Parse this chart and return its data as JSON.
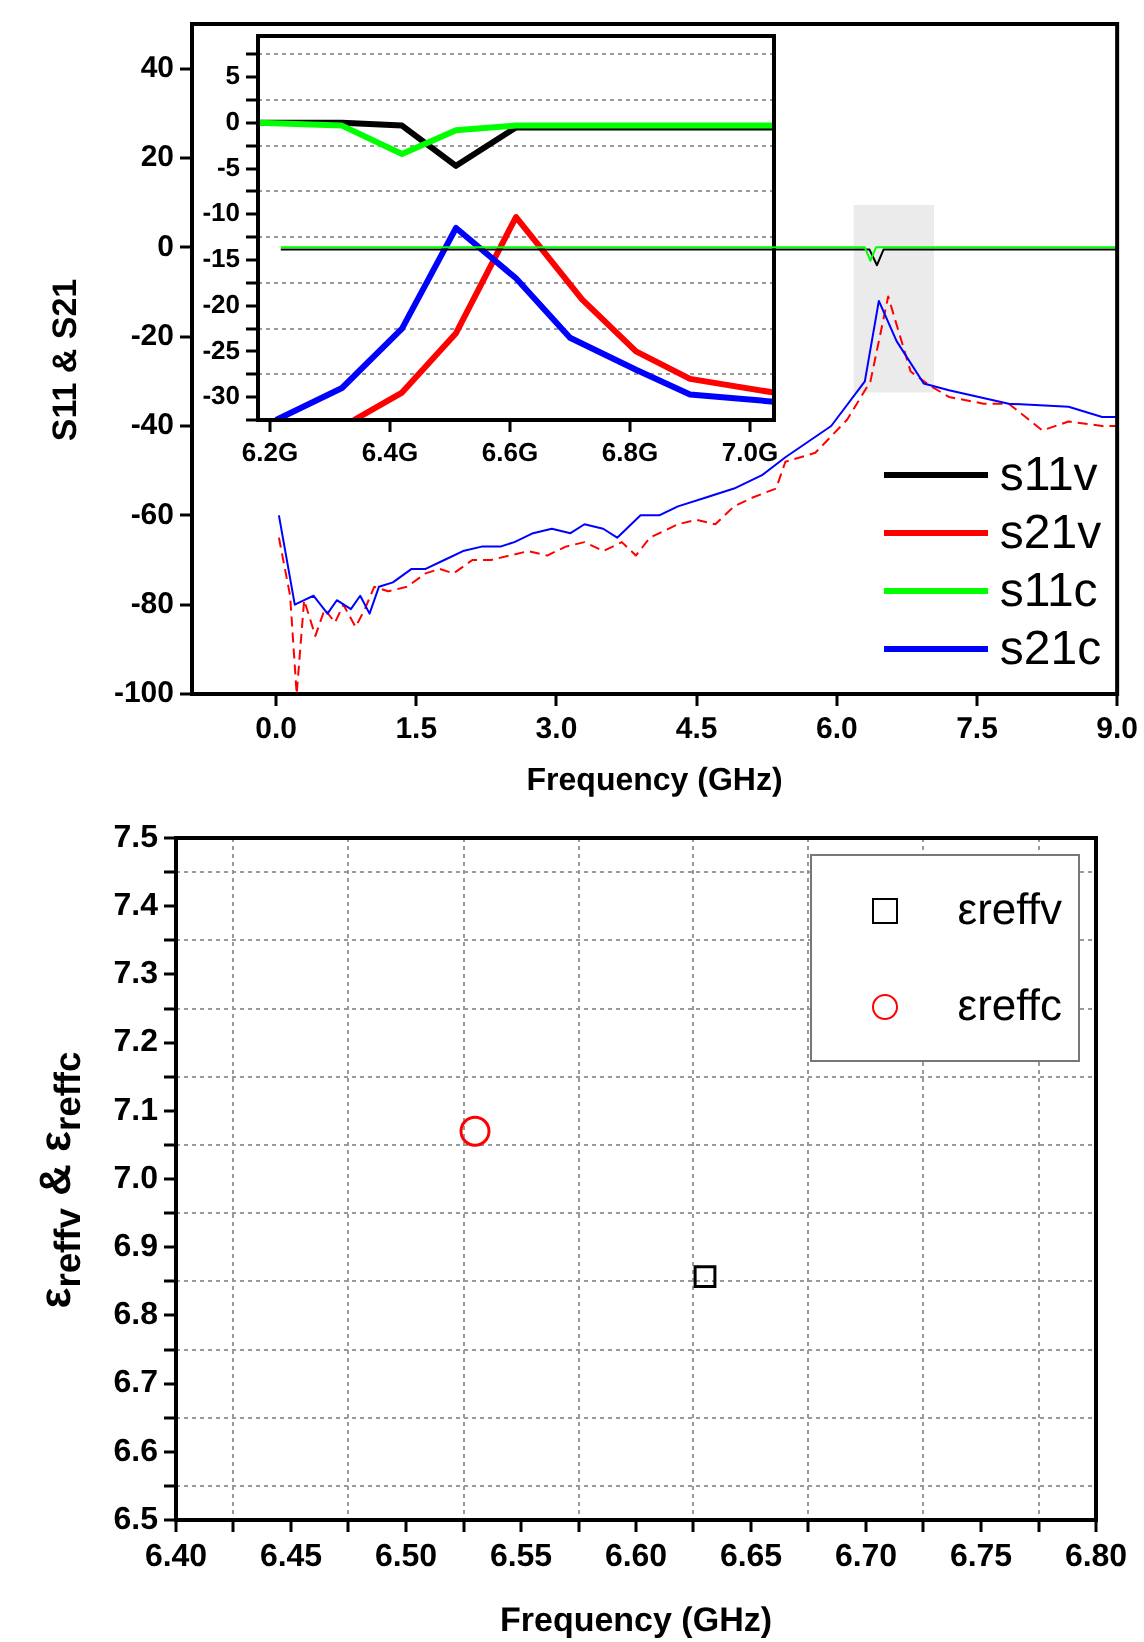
{
  "chart_data": [
    {
      "type": "line",
      "xlabel": "Frequency (GHz)",
      "ylabel": "S11 & S21",
      "xlim": [
        -0.9,
        9
      ],
      "xticks": [
        {
          "value": 0,
          "label": "0.0"
        },
        1.5,
        {
          "value": 3,
          "label": "3.0"
        },
        4.5,
        {
          "value": 6,
          "label": "6.0"
        },
        7.5,
        {
          "value": 9,
          "label": "9.0"
        }
      ],
      "ylim": [
        -100,
        50
      ],
      "yticks": [
        -100,
        -80,
        -60,
        -40,
        -20,
        0,
        20,
        40
      ],
      "grid": false,
      "legend": "bottom right",
      "marker": "none",
      "bands": [
        {
          "axis": "x",
          "from": 6.18,
          "to": 7.04,
          "color": "#5a5a5a"
        }
      ],
      "series": [
        {
          "name": "s11v",
          "color": "#000000",
          "x": [
            0.05,
            6.35,
            6.43,
            6.5,
            9
          ],
          "values": [
            -0.5,
            -0.5,
            -4,
            -0.5,
            -0.5
          ]
        },
        {
          "name": "s21v",
          "color": "#ff0000",
          "line_style": "dashed",
          "x": [
            0.03,
            0.15,
            0.22,
            0.3,
            0.42,
            0.52,
            0.63,
            0.72,
            0.85,
            0.95,
            1.05,
            1.2,
            1.4,
            1.6,
            1.75,
            1.9,
            2.1,
            2.3,
            2.5,
            2.7,
            2.9,
            3.1,
            3.3,
            3.5,
            3.7,
            3.85,
            4.0,
            4.3,
            4.5,
            4.7,
            4.9,
            5.1,
            5.35,
            5.45,
            5.77,
            6.11,
            6.36,
            6.55,
            6.79,
            7.0,
            7.2,
            7.57,
            7.84,
            8.2,
            8.48,
            8.84,
            9.0
          ],
          "values": [
            -65,
            -78,
            -100,
            -79,
            -87,
            -81,
            -84,
            -80,
            -85,
            -81,
            -76,
            -77,
            -76,
            -73,
            -72,
            -73,
            -70,
            -70,
            -69,
            -68,
            -69,
            -67,
            -66,
            -68,
            -66,
            -69,
            -65,
            -62,
            -61,
            -62,
            -58,
            -56,
            -54,
            -48,
            -46,
            -38.6,
            -30,
            -11,
            -27.8,
            -31,
            -33.5,
            -35,
            -35,
            -41,
            -39,
            -40,
            -40
          ]
        },
        {
          "name": "s11c",
          "color": "#00ff00",
          "x": [
            0.05,
            6.3,
            6.36,
            6.42,
            9
          ],
          "values": [
            0,
            0,
            -3,
            0,
            0
          ]
        },
        {
          "name": "s21c",
          "color": "#0000ff",
          "x": [
            0.03,
            0.2,
            0.3,
            0.4,
            0.55,
            0.65,
            0.8,
            0.9,
            1.0,
            1.1,
            1.25,
            1.45,
            1.6,
            1.8,
            2.0,
            2.2,
            2.4,
            2.55,
            2.75,
            2.95,
            3.15,
            3.3,
            3.5,
            3.65,
            3.9,
            4.1,
            4.3,
            4.6,
            4.9,
            5.2,
            5.45,
            5.94,
            6.3,
            6.45,
            6.64,
            6.93,
            7.2,
            7.84,
            8.48,
            8.84,
            9.0
          ],
          "values": [
            -60,
            -80,
            -79,
            -78,
            -82,
            -79,
            -81,
            -78,
            -82,
            -76,
            -75,
            -72,
            -72,
            -70,
            -68,
            -67,
            -67,
            -66,
            -64,
            -63,
            -64,
            -62,
            -63,
            -65,
            -60,
            -60,
            -58,
            -56,
            -54,
            -51,
            -47,
            -40,
            -30,
            -12,
            -21,
            -30.5,
            -32,
            -35,
            -35.7,
            -38,
            -38
          ]
        }
      ]
    },
    {
      "type": "line",
      "xlim": [
        6.18,
        7.04
      ],
      "xticks": [
        {
          "value": 6.2,
          "label": "6.2G"
        },
        {
          "value": 6.4,
          "label": "6.4G"
        },
        {
          "value": 6.6,
          "label": "6.6G"
        },
        {
          "value": 6.8,
          "label": "6.8G"
        },
        {
          "value": 7.0,
          "label": "7.0G"
        }
      ],
      "ylim": [
        -32.5,
        9.5
      ],
      "yticks": [
        {
          "value": -32.5,
          "label": null
        },
        -30,
        {
          "value": -27.5,
          "label": null
        },
        -25,
        {
          "value": -22.5,
          "label": null
        },
        -20,
        {
          "value": -17.5,
          "label": null
        },
        -15,
        {
          "value": -12.5,
          "label": null
        },
        -10,
        {
          "value": -7.5,
          "label": null
        },
        -5,
        {
          "value": -2.5,
          "label": null
        },
        0,
        {
          "value": 2.5,
          "label": null
        },
        5,
        {
          "value": 7.5,
          "label": null
        }
      ],
      "grid": "y",
      "marker": "none",
      "series": [
        {
          "color": "#000000",
          "x": [
            6.18,
            6.32,
            6.42,
            6.51,
            6.61,
            6.8,
            7.04
          ],
          "values": [
            0,
            0,
            -0.3,
            -4.7,
            -0.5,
            -0.5,
            -0.5
          ]
        },
        {
          "color": "#ff0000",
          "x": [
            6.34,
            6.42,
            6.51,
            6.61,
            6.72,
            6.81,
            6.9,
            7.04
          ],
          "values": [
            -32.5,
            -29.5,
            -23,
            -10.3,
            -19.3,
            -25,
            -28,
            -29.5
          ]
        },
        {
          "color": "#00ff00",
          "x": [
            6.18,
            6.32,
            6.42,
            6.51,
            6.61,
            6.8,
            7.04
          ],
          "values": [
            0,
            -0.3,
            -3.4,
            -0.8,
            -0.3,
            -0.3,
            -0.3
          ]
        },
        {
          "color": "#0000ff",
          "x": [
            6.21,
            6.32,
            6.42,
            6.51,
            6.61,
            6.7,
            6.81,
            6.9,
            7.04
          ],
          "values": [
            -32.5,
            -29,
            -22.5,
            -11.5,
            -17,
            -23.5,
            -27,
            -29.7,
            -30.5
          ]
        }
      ]
    },
    {
      "type": "scatter",
      "xlabel": "Frequency (GHz)",
      "ylabel": "ε$_{reffv}$ & ε$_{reffc}$",
      "xlim": [
        6.4,
        6.8
      ],
      "xticks": [
        {
          "value": 6.4,
          "label": "6.40"
        },
        {
          "value": 6.425,
          "label": null
        },
        6.45,
        {
          "value": 6.475,
          "label": null
        },
        {
          "value": 6.5,
          "label": "6.50"
        },
        {
          "value": 6.525,
          "label": null
        },
        6.55,
        {
          "value": 6.575,
          "label": null
        },
        {
          "value": 6.6,
          "label": "6.60"
        },
        {
          "value": 6.625,
          "label": null
        },
        6.65,
        {
          "value": 6.675,
          "label": null
        },
        {
          "value": 6.7,
          "label": "6.70"
        },
        {
          "value": 6.725,
          "label": null
        },
        6.75,
        {
          "value": 6.775,
          "label": null
        },
        {
          "value": 6.8,
          "label": "6.80"
        }
      ],
      "ylim": [
        6.5,
        7.5
      ],
      "yticks": [
        6.5,
        {
          "value": 6.55,
          "label": null
        },
        6.6,
        {
          "value": 6.65,
          "label": null
        },
        6.7,
        {
          "value": 6.75,
          "label": null
        },
        6.8,
        {
          "value": 6.85,
          "label": null
        },
        6.9,
        {
          "value": 6.95,
          "label": null
        },
        {
          "value": 7.0,
          "label": "7.0"
        },
        {
          "value": 7.05,
          "label": null
        },
        7.1,
        {
          "value": 7.15,
          "label": null
        },
        7.2,
        {
          "value": 7.25,
          "label": null
        },
        7.3,
        {
          "value": 7.35,
          "label": null
        },
        7.4,
        {
          "value": 7.45,
          "label": null
        },
        7.5
      ],
      "grid": true,
      "legend": "top right",
      "series": [
        {
          "name": "εreffv",
          "color": "#000000",
          "marker": "square",
          "x": [
            6.63
          ],
          "values": [
            6.857
          ]
        },
        {
          "name": "εreffc",
          "color": "#ff0000",
          "marker": "circle",
          "x": [
            6.53
          ],
          "values": [
            7.07
          ]
        }
      ]
    }
  ]
}
